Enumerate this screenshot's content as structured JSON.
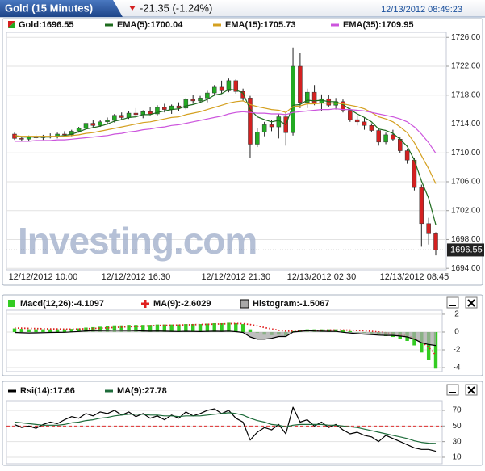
{
  "header": {
    "title": "Gold (15 Minutes)",
    "change": "-21.35 (-1.24%)",
    "timestamp": "12/13/2012 08:49:23"
  },
  "chart_data": [
    {
      "type": "candlestick",
      "name": "Gold:1696.55",
      "watermark": "Investing.com",
      "up_color": "#22aa22",
      "down_color": "#d42020",
      "categories": [
        null,
        null,
        null,
        null,
        "12/12/2012 10:00",
        null,
        null,
        null,
        null,
        null,
        null,
        null,
        null,
        null,
        null,
        null,
        null,
        "12/12/2012 16:30",
        null,
        null,
        null,
        null,
        null,
        null,
        null,
        null,
        null,
        null,
        null,
        null,
        null,
        "12/12/2012 21:30",
        null,
        null,
        null,
        null,
        null,
        null,
        null,
        null,
        null,
        null,
        null,
        "12/13/2012 02:30",
        null,
        null,
        null,
        null,
        null,
        null,
        null,
        null,
        null,
        null,
        null,
        null,
        "12/13/2012 08:45",
        null,
        null,
        null
      ],
      "open": [
        1712.6,
        1712.0,
        1711.9,
        1712.2,
        1712.1,
        1712.3,
        1712.2,
        1712.6,
        1712.5,
        1713.0,
        1713.4,
        1714.1,
        1713.8,
        1714.3,
        1714.5,
        1715.2,
        1714.9,
        1715.5,
        1715.3,
        1715.7,
        1715.4,
        1716.3,
        1716.0,
        1716.5,
        1716.2,
        1717.4,
        1717.2,
        1717.6,
        1718.3,
        1719.1,
        1718.6,
        1720.0,
        1718.5,
        1717.6,
        1711.2,
        1712.9,
        1713.9,
        1713.6,
        1715.0,
        1712.8,
        1722.0,
        1717.0,
        1718.4,
        1716.9,
        1717.5,
        1716.6,
        1717.1,
        1715.9,
        1714.6,
        1714.3,
        1713.8,
        1713.1,
        1711.5,
        1712.5,
        1711.9,
        1710.3,
        1709.0,
        1705.2,
        1700.2,
        1698.8
      ],
      "high": [
        1712.8,
        1712.3,
        1712.4,
        1712.6,
        1712.5,
        1712.7,
        1712.8,
        1713.0,
        1713.2,
        1713.6,
        1714.3,
        1714.5,
        1714.6,
        1714.9,
        1715.4,
        1715.6,
        1715.8,
        1716.2,
        1715.9,
        1716.3,
        1716.6,
        1716.8,
        1716.7,
        1717.0,
        1717.6,
        1718.0,
        1717.9,
        1718.6,
        1719.4,
        1720.0,
        1720.3,
        1720.2,
        1718.9,
        1717.9,
        1713.4,
        1714.3,
        1714.6,
        1715.4,
        1715.6,
        1724.6,
        1723.9,
        1718.9,
        1719.4,
        1718.1,
        1718.0,
        1717.6,
        1717.4,
        1716.2,
        1715.2,
        1714.9,
        1714.1,
        1713.5,
        1712.8,
        1713.2,
        1712.2,
        1710.6,
        1709.3,
        1705.6,
        1701.0,
        1699.0
      ],
      "low": [
        1711.8,
        1711.6,
        1711.7,
        1711.9,
        1711.8,
        1712.0,
        1712.0,
        1712.3,
        1712.3,
        1712.8,
        1713.1,
        1713.5,
        1713.6,
        1713.9,
        1714.2,
        1714.6,
        1714.7,
        1715.0,
        1714.8,
        1715.2,
        1715.2,
        1715.6,
        1715.4,
        1715.8,
        1716.0,
        1716.8,
        1716.9,
        1717.0,
        1717.9,
        1718.2,
        1718.4,
        1718.2,
        1717.2,
        1709.3,
        1710.8,
        1712.3,
        1713.0,
        1712.0,
        1711.0,
        1712.4,
        1716.2,
        1716.2,
        1716.6,
        1715.8,
        1716.3,
        1716.0,
        1715.6,
        1714.3,
        1713.8,
        1713.2,
        1712.9,
        1711.0,
        1711.2,
        1711.6,
        1710.0,
        1708.5,
        1704.8,
        1697.0,
        1697.3,
        1695.8
      ],
      "close": [
        1712.0,
        1711.9,
        1712.2,
        1712.1,
        1712.3,
        1712.2,
        1712.6,
        1712.5,
        1713.0,
        1713.4,
        1714.1,
        1713.8,
        1714.3,
        1714.5,
        1715.2,
        1714.9,
        1715.5,
        1715.3,
        1715.7,
        1715.4,
        1716.3,
        1716.0,
        1716.5,
        1716.2,
        1717.4,
        1717.2,
        1717.6,
        1718.3,
        1719.1,
        1718.6,
        1720.0,
        1718.5,
        1717.6,
        1711.2,
        1712.9,
        1713.9,
        1713.6,
        1715.0,
        1712.8,
        1722.0,
        1717.0,
        1718.4,
        1716.9,
        1717.5,
        1716.6,
        1717.1,
        1715.9,
        1714.6,
        1714.3,
        1713.8,
        1713.1,
        1711.5,
        1712.5,
        1711.9,
        1710.3,
        1709.0,
        1705.2,
        1700.2,
        1698.8,
        1696.55
      ],
      "series": [
        {
          "name": "EMA(5):1700.04",
          "color": "#1d6b1d",
          "values": [
            1712.3,
            1712.2,
            1712.2,
            1712.2,
            1712.2,
            1712.2,
            1712.3,
            1712.4,
            1712.6,
            1712.9,
            1713.3,
            1713.5,
            1713.7,
            1714.0,
            1714.4,
            1714.6,
            1714.9,
            1715.0,
            1715.3,
            1715.3,
            1715.6,
            1715.8,
            1716.0,
            1716.1,
            1716.5,
            1716.7,
            1717.0,
            1717.4,
            1718.0,
            1718.2,
            1718.8,
            1718.7,
            1718.3,
            1716.0,
            1715.0,
            1714.6,
            1714.3,
            1714.5,
            1713.9,
            1716.6,
            1716.7,
            1717.3,
            1717.2,
            1717.3,
            1717.1,
            1717.1,
            1716.7,
            1716.0,
            1715.4,
            1714.9,
            1714.3,
            1713.3,
            1713.1,
            1712.7,
            1711.9,
            1710.9,
            1709.0,
            1706.1,
            1703.7,
            1700.04
          ]
        },
        {
          "name": "EMA(15):1705.73",
          "color": "#d4a020",
          "values": [
            1712.4,
            1712.3,
            1712.3,
            1712.3,
            1712.3,
            1712.3,
            1712.3,
            1712.3,
            1712.4,
            1712.5,
            1712.7,
            1712.8,
            1713.0,
            1713.2,
            1713.4,
            1713.6,
            1713.8,
            1714.0,
            1714.2,
            1714.3,
            1714.5,
            1714.7,
            1714.9,
            1715.0,
            1715.3,
            1715.5,
            1715.7,
            1716.0,
            1716.3,
            1716.6,
            1716.9,
            1717.1,
            1717.2,
            1716.7,
            1716.4,
            1716.2,
            1716.0,
            1715.9,
            1715.6,
            1716.4,
            1716.5,
            1716.8,
            1716.8,
            1716.9,
            1716.9,
            1716.9,
            1716.8,
            1716.6,
            1716.4,
            1716.1,
            1715.6,
            1715.0,
            1714.7,
            1714.3,
            1713.6,
            1712.8,
            1711.4,
            1709.6,
            1707.8,
            1705.73
          ]
        },
        {
          "name": "EMA(35):1709.95",
          "color": "#cc55dd",
          "values": [
            1711.6,
            1711.6,
            1711.6,
            1711.7,
            1711.7,
            1711.7,
            1711.8,
            1711.8,
            1711.9,
            1712.0,
            1712.1,
            1712.2,
            1712.3,
            1712.4,
            1712.6,
            1712.7,
            1712.9,
            1713.0,
            1713.2,
            1713.3,
            1713.5,
            1713.6,
            1713.8,
            1713.9,
            1714.1,
            1714.3,
            1714.5,
            1714.7,
            1714.9,
            1715.1,
            1715.4,
            1715.6,
            1715.7,
            1715.6,
            1715.5,
            1715.5,
            1715.4,
            1715.4,
            1715.3,
            1715.6,
            1715.7,
            1715.8,
            1715.9,
            1716.0,
            1716.0,
            1716.1,
            1716.0,
            1716.0,
            1715.9,
            1715.8,
            1715.6,
            1715.4,
            1715.2,
            1715.0,
            1714.7,
            1714.3,
            1713.6,
            1712.6,
            1711.4,
            1709.95
          ]
        }
      ],
      "ylim": [
        1693.8,
        1726.7
      ],
      "yticks": [
        {
          "value": 1726,
          "label": "1726.00"
        },
        {
          "value": 1722,
          "label": "1722.00"
        },
        {
          "value": 1718,
          "label": "1718.00"
        },
        {
          "value": 1714,
          "label": "1714.00"
        },
        {
          "value": 1710,
          "label": "1710.00"
        },
        {
          "value": 1706,
          "label": "1706.00"
        },
        {
          "value": 1702,
          "label": "1702.00"
        },
        {
          "value": 1698,
          "label": "1698.00"
        },
        {
          "value": 1694,
          "label": "1694.00"
        }
      ],
      "grid": true
    },
    {
      "type": "combo",
      "series": [
        {
          "name": "Macd(12,26):-4.1097",
          "type": "bar",
          "color": "#33cc22",
          "values": [
            0.4,
            0.35,
            0.3,
            0.3,
            0.3,
            0.3,
            0.3,
            0.3,
            0.35,
            0.4,
            0.5,
            0.55,
            0.6,
            0.65,
            0.75,
            0.75,
            0.8,
            0.8,
            0.8,
            0.8,
            0.85,
            0.85,
            0.85,
            0.85,
            0.9,
            0.9,
            0.9,
            0.95,
            1.0,
            1.0,
            1.05,
            1.0,
            0.9,
            0.3,
            -0.1,
            -0.3,
            -0.35,
            -0.3,
            -0.4,
            0.1,
            0.2,
            0.3,
            0.3,
            0.3,
            0.3,
            0.3,
            0.2,
            0.1,
            0.0,
            -0.1,
            -0.2,
            -0.35,
            -0.45,
            -0.55,
            -0.75,
            -1.0,
            -1.5,
            -2.3,
            -3.1,
            -4.1097
          ]
        },
        {
          "name": "MA(9):-2.6029",
          "type": "line",
          "style": "dotted",
          "color": "#e02020",
          "values": [
            0.45,
            0.43,
            0.41,
            0.39,
            0.37,
            0.35,
            0.34,
            0.33,
            0.33,
            0.34,
            0.37,
            0.4,
            0.43,
            0.47,
            0.52,
            0.56,
            0.6,
            0.64,
            0.67,
            0.7,
            0.73,
            0.75,
            0.77,
            0.79,
            0.81,
            0.83,
            0.85,
            0.87,
            0.9,
            0.92,
            0.94,
            0.96,
            0.95,
            0.85,
            0.7,
            0.5,
            0.35,
            0.2,
            0.1,
            0.1,
            0.12,
            0.15,
            0.18,
            0.2,
            0.22,
            0.23,
            0.23,
            0.21,
            0.18,
            0.14,
            0.08,
            0.0,
            -0.08,
            -0.18,
            -0.3,
            -0.45,
            -0.7,
            -1.1,
            -1.7,
            -2.6029
          ]
        },
        {
          "name": "Histogram:-1.5067",
          "type": "area",
          "color": "#000000",
          "fill": "#a8a8a8",
          "values": [
            -0.05,
            -0.08,
            -0.11,
            -0.09,
            -0.07,
            -0.05,
            -0.04,
            -0.03,
            0.02,
            0.06,
            0.13,
            0.15,
            0.17,
            0.18,
            0.23,
            0.19,
            0.2,
            0.16,
            0.13,
            0.1,
            0.12,
            0.1,
            0.08,
            0.06,
            0.09,
            0.07,
            0.05,
            0.08,
            0.1,
            0.08,
            0.11,
            0.04,
            -0.05,
            -0.55,
            -0.8,
            -0.8,
            -0.7,
            -0.5,
            -0.5,
            0.0,
            0.08,
            0.15,
            0.12,
            0.1,
            0.08,
            0.07,
            -0.03,
            -0.11,
            -0.18,
            -0.24,
            -0.28,
            -0.35,
            -0.37,
            -0.37,
            -0.45,
            -0.55,
            -0.8,
            -1.2,
            -1.4,
            -1.5067
          ]
        }
      ],
      "ylim": [
        -4.45,
        2.45
      ],
      "yticks": [
        2,
        0,
        -2,
        -4
      ],
      "grid": true
    },
    {
      "type": "line",
      "series": [
        {
          "name": "Rsi(14):17.66",
          "color": "#000000",
          "values": [
            52,
            48,
            50,
            47,
            52,
            55,
            53,
            58,
            62,
            60,
            66,
            63,
            68,
            66,
            70,
            64,
            68,
            62,
            66,
            60,
            63,
            58,
            64,
            60,
            68,
            63,
            66,
            70,
            72,
            66,
            70,
            60,
            55,
            32,
            42,
            48,
            45,
            52,
            40,
            74,
            55,
            58,
            50,
            55,
            48,
            52,
            45,
            40,
            42,
            38,
            36,
            30,
            38,
            34,
            30,
            26,
            22,
            20,
            20,
            17.66
          ]
        },
        {
          "name": "MA(9):27.78",
          "color": "#1d6b3a",
          "values": [
            55,
            54,
            53,
            52,
            51,
            51,
            51,
            52,
            54,
            55,
            57,
            58,
            60,
            61,
            63,
            64,
            65,
            65,
            65,
            64,
            64,
            63,
            63,
            62,
            63,
            63,
            63,
            64,
            65,
            66,
            67,
            66,
            64,
            60,
            57,
            55,
            52,
            51,
            49,
            51,
            52,
            52,
            52,
            52,
            51,
            51,
            50,
            49,
            48,
            46,
            44,
            42,
            40,
            38,
            36,
            34,
            31,
            29,
            28,
            27.78
          ]
        }
      ],
      "hline": {
        "value": 50,
        "color": "#e03030"
      },
      "ylim": [
        1.7,
        82.4
      ],
      "yticks": [
        70,
        50,
        30,
        10
      ],
      "grid": true
    }
  ]
}
